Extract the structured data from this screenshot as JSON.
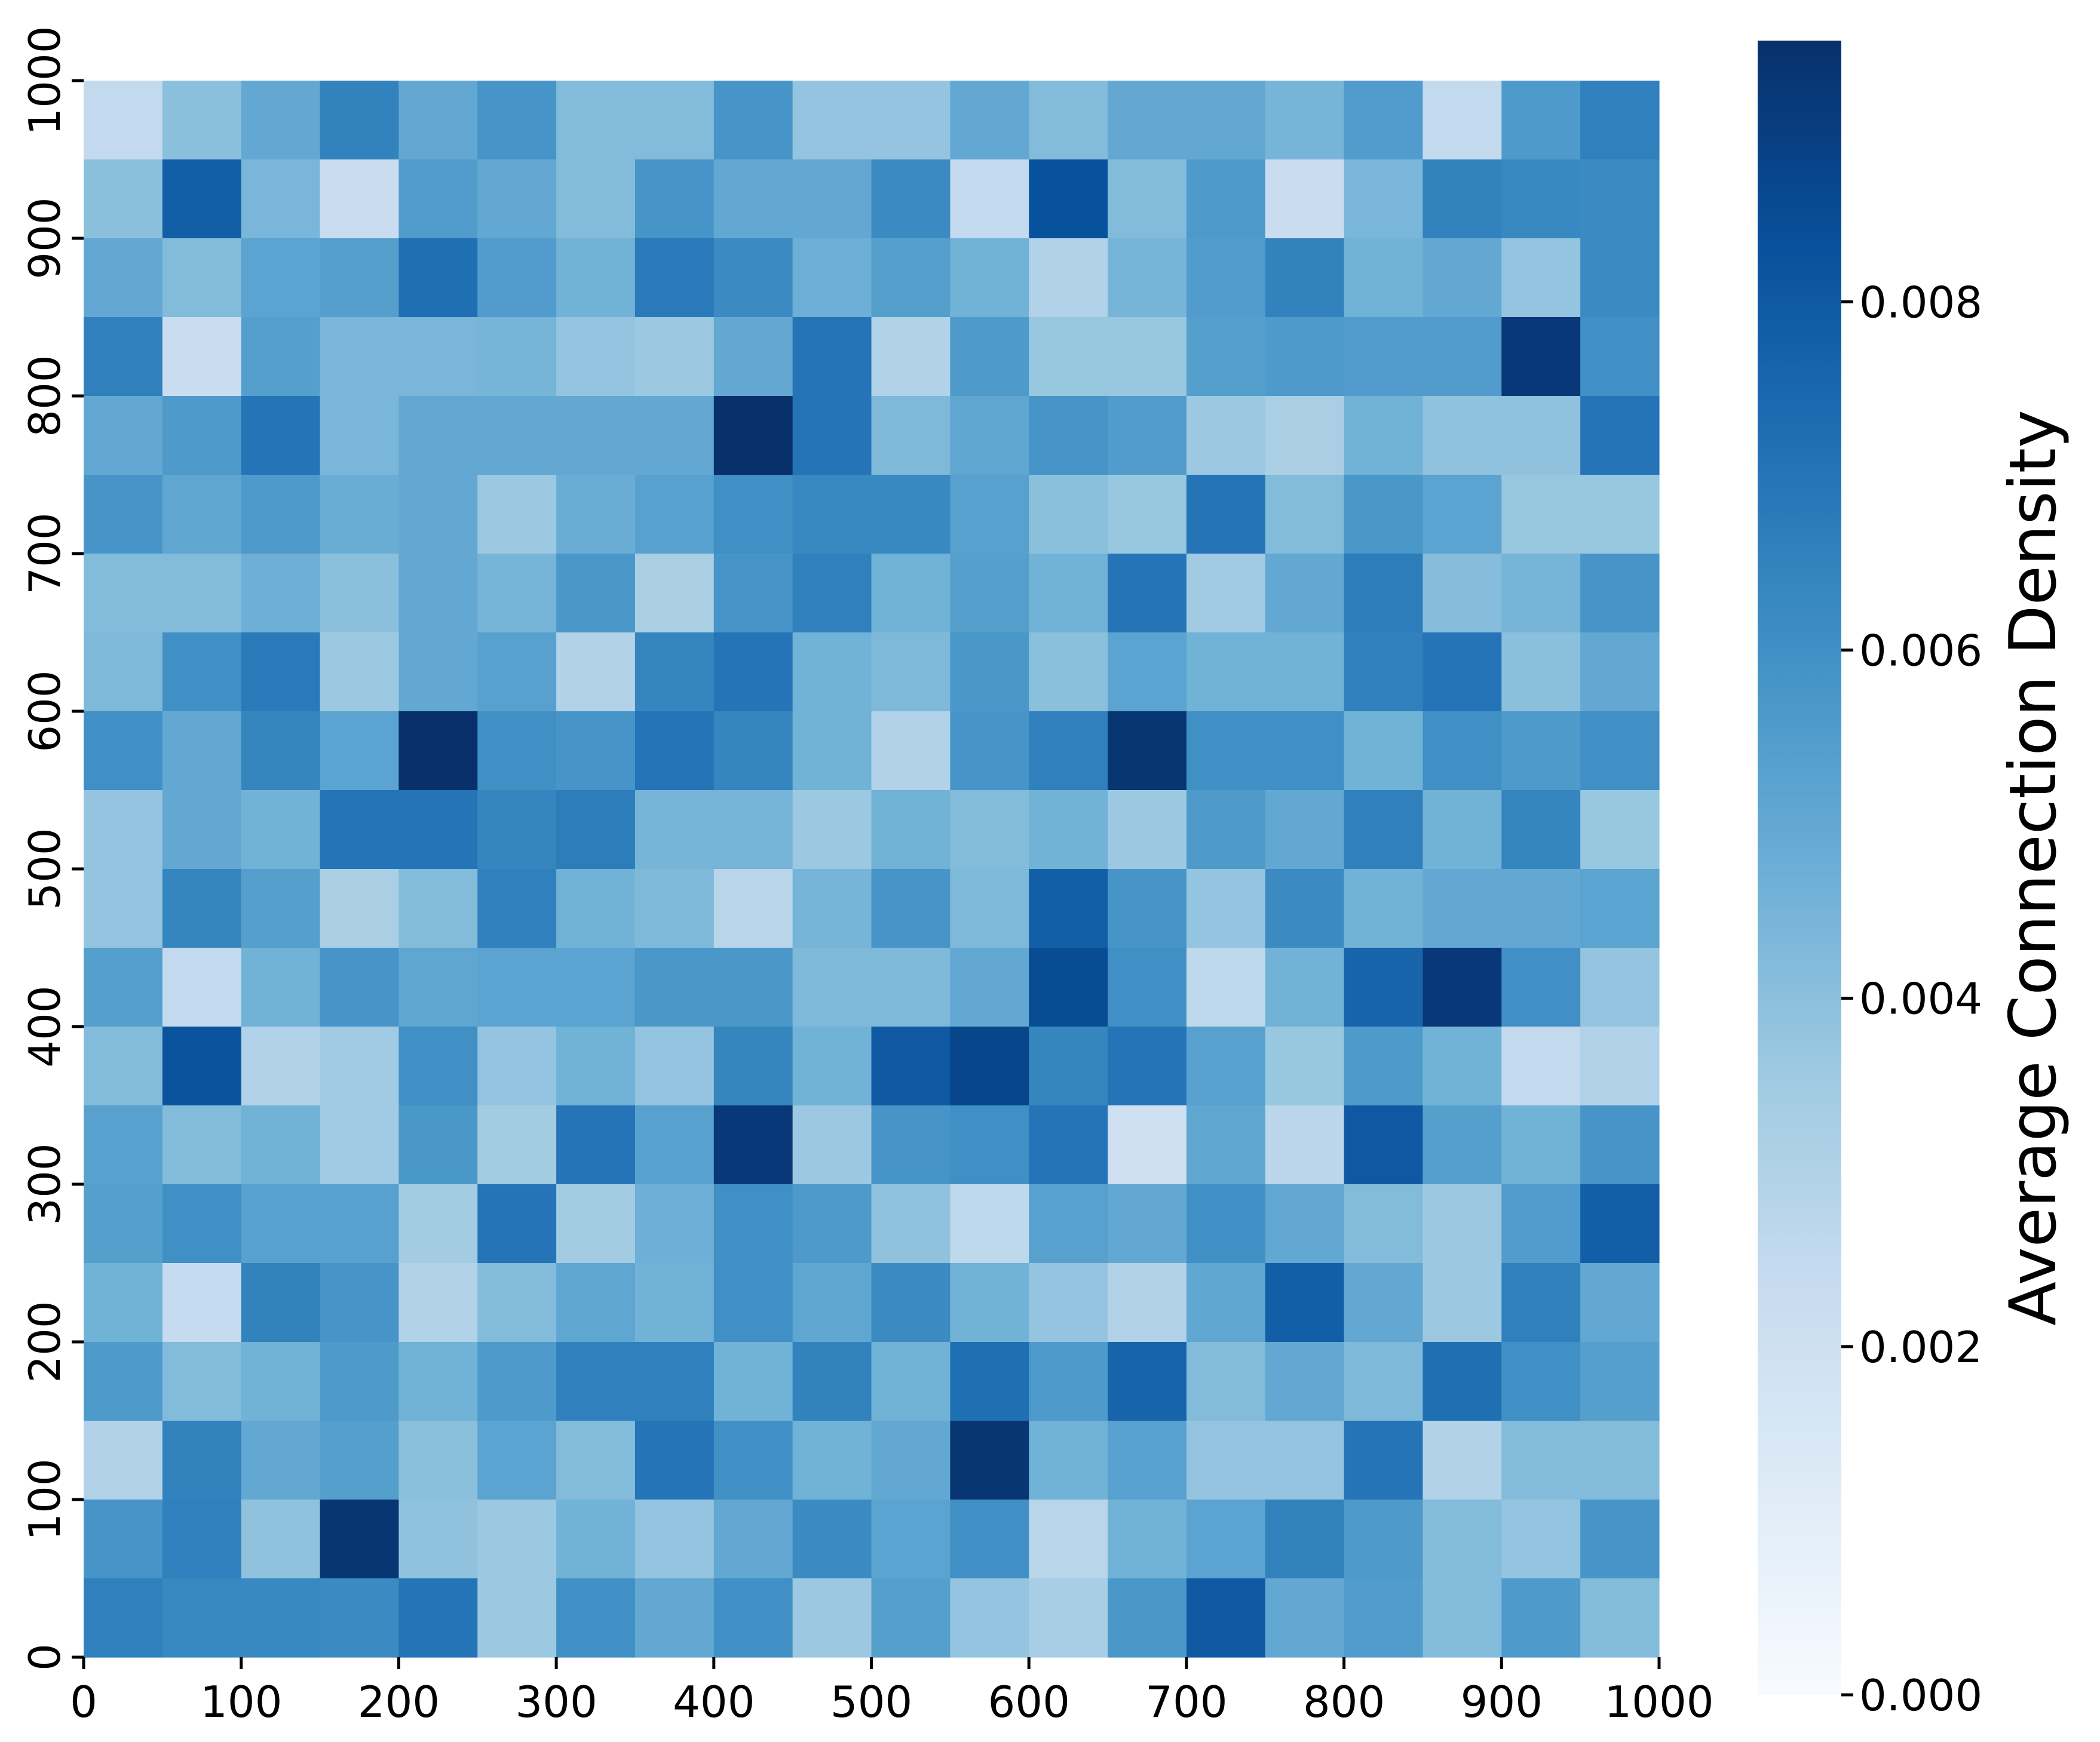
{
  "chart_data": {
    "type": "heatmap",
    "title": "",
    "xlabel": "",
    "ylabel": "",
    "x_range": [
      0,
      1000
    ],
    "y_range": [
      0,
      1000
    ],
    "bins": 20,
    "cell_size": 50,
    "x_ticks": [
      "0",
      "100",
      "200",
      "300",
      "400",
      "500",
      "600",
      "700",
      "800",
      "900",
      "1000"
    ],
    "y_ticks": [
      "0",
      "100",
      "200",
      "300",
      "400",
      "500",
      "600",
      "700",
      "800",
      "900",
      "1000"
    ],
    "colormap": "Blues",
    "colorbar": {
      "label": "Average Connection Density",
      "range": [
        0.0,
        0.0095
      ],
      "ticks": [
        "0.000",
        "0.002",
        "0.004",
        "0.006",
        "0.008"
      ],
      "tick_values": [
        0.0,
        0.002,
        0.004,
        0.006,
        0.008
      ]
    },
    "grid": false,
    "values_top_to_bottom": [
      [
        0.0025,
        0.004,
        0.005,
        0.0065,
        0.005,
        0.0058,
        0.0042,
        0.0042,
        0.0058,
        0.0038,
        0.0038,
        0.005,
        0.0042,
        0.005,
        0.005,
        0.0045,
        0.0055,
        0.0025,
        0.0056,
        0.0066
      ],
      [
        0.004,
        0.0078,
        0.0044,
        0.0022,
        0.0055,
        0.005,
        0.0042,
        0.0058,
        0.005,
        0.005,
        0.0062,
        0.0025,
        0.0083,
        0.0042,
        0.0056,
        0.0022,
        0.0044,
        0.0065,
        0.0063,
        0.0062
      ],
      [
        0.005,
        0.0042,
        0.0052,
        0.0054,
        0.0072,
        0.0055,
        0.0046,
        0.0068,
        0.0062,
        0.0047,
        0.0054,
        0.0046,
        0.003,
        0.0045,
        0.0055,
        0.0065,
        0.0046,
        0.005,
        0.0038,
        0.0062
      ],
      [
        0.0066,
        0.0022,
        0.0054,
        0.0044,
        0.0044,
        0.0045,
        0.0038,
        0.0036,
        0.005,
        0.007,
        0.003,
        0.0056,
        0.0037,
        0.0037,
        0.0054,
        0.0056,
        0.0055,
        0.0055,
        0.0092,
        0.006
      ],
      [
        0.005,
        0.0056,
        0.007,
        0.0044,
        0.005,
        0.005,
        0.005,
        0.005,
        0.0095,
        0.007,
        0.0043,
        0.0051,
        0.0058,
        0.0055,
        0.0036,
        0.0032,
        0.0046,
        0.0039,
        0.0039,
        0.007
      ],
      [
        0.0058,
        0.0051,
        0.0056,
        0.0048,
        0.005,
        0.0036,
        0.0048,
        0.0053,
        0.006,
        0.0063,
        0.0063,
        0.0053,
        0.004,
        0.0037,
        0.007,
        0.0042,
        0.0057,
        0.0052,
        0.0037,
        0.0037
      ],
      [
        0.0042,
        0.0042,
        0.0047,
        0.004,
        0.005,
        0.0045,
        0.0057,
        0.0032,
        0.0058,
        0.0066,
        0.0046,
        0.0054,
        0.0046,
        0.007,
        0.0035,
        0.005,
        0.0067,
        0.0041,
        0.0045,
        0.0058
      ],
      [
        0.0043,
        0.006,
        0.0068,
        0.0036,
        0.005,
        0.0053,
        0.003,
        0.0064,
        0.007,
        0.0046,
        0.0043,
        0.0057,
        0.004,
        0.0052,
        0.0046,
        0.0046,
        0.0066,
        0.007,
        0.004,
        0.005
      ],
      [
        0.006,
        0.005,
        0.0064,
        0.0052,
        0.0095,
        0.006,
        0.0058,
        0.007,
        0.0064,
        0.0046,
        0.003,
        0.0058,
        0.0066,
        0.0093,
        0.006,
        0.006,
        0.0046,
        0.006,
        0.0056,
        0.006
      ],
      [
        0.0038,
        0.005,
        0.0046,
        0.007,
        0.007,
        0.0064,
        0.0067,
        0.0045,
        0.0045,
        0.0036,
        0.0046,
        0.0042,
        0.0046,
        0.0036,
        0.0056,
        0.005,
        0.0066,
        0.0046,
        0.0064,
        0.0037
      ],
      [
        0.0038,
        0.0064,
        0.0054,
        0.0032,
        0.0042,
        0.0066,
        0.0046,
        0.0043,
        0.0028,
        0.0045,
        0.0058,
        0.0043,
        0.0078,
        0.0058,
        0.0038,
        0.0062,
        0.0046,
        0.005,
        0.005,
        0.0052
      ],
      [
        0.0054,
        0.0025,
        0.0046,
        0.0058,
        0.0051,
        0.0052,
        0.0052,
        0.0057,
        0.0057,
        0.0043,
        0.0043,
        0.005,
        0.0085,
        0.006,
        0.0026,
        0.0046,
        0.0076,
        0.0092,
        0.006,
        0.0038
      ],
      [
        0.0042,
        0.0082,
        0.003,
        0.0035,
        0.006,
        0.0038,
        0.0046,
        0.0038,
        0.0064,
        0.0046,
        0.008,
        0.0087,
        0.0064,
        0.007,
        0.0053,
        0.0037,
        0.0056,
        0.0046,
        0.0025,
        0.003
      ],
      [
        0.0053,
        0.0042,
        0.0046,
        0.0035,
        0.0057,
        0.0034,
        0.007,
        0.0053,
        0.0092,
        0.0036,
        0.0058,
        0.006,
        0.007,
        0.002,
        0.0051,
        0.0027,
        0.008,
        0.0054,
        0.0046,
        0.0058
      ],
      [
        0.0054,
        0.006,
        0.0053,
        0.0053,
        0.0034,
        0.007,
        0.0034,
        0.0047,
        0.006,
        0.0056,
        0.0039,
        0.0026,
        0.0053,
        0.005,
        0.006,
        0.005,
        0.0042,
        0.0036,
        0.0055,
        0.0078
      ],
      [
        0.0046,
        0.0024,
        0.0065,
        0.0058,
        0.003,
        0.0042,
        0.0051,
        0.0046,
        0.006,
        0.0051,
        0.0062,
        0.0046,
        0.0038,
        0.003,
        0.0051,
        0.0078,
        0.005,
        0.0036,
        0.0066,
        0.005
      ],
      [
        0.0056,
        0.0042,
        0.0046,
        0.0056,
        0.0046,
        0.0056,
        0.0066,
        0.0066,
        0.0046,
        0.0065,
        0.0046,
        0.0072,
        0.0056,
        0.0076,
        0.0042,
        0.005,
        0.0043,
        0.0072,
        0.006,
        0.0054
      ],
      [
        0.003,
        0.0065,
        0.005,
        0.0054,
        0.004,
        0.0052,
        0.0042,
        0.007,
        0.006,
        0.0046,
        0.005,
        0.0093,
        0.0046,
        0.0053,
        0.0038,
        0.0038,
        0.007,
        0.003,
        0.0042,
        0.0042
      ],
      [
        0.0058,
        0.0066,
        0.0039,
        0.0093,
        0.0039,
        0.0036,
        0.0046,
        0.0038,
        0.005,
        0.0062,
        0.0052,
        0.006,
        0.0028,
        0.0046,
        0.0052,
        0.0065,
        0.0056,
        0.0042,
        0.0038,
        0.0058
      ],
      [
        0.0066,
        0.0063,
        0.0063,
        0.0062,
        0.007,
        0.0036,
        0.006,
        0.005,
        0.006,
        0.0036,
        0.0054,
        0.0038,
        0.0033,
        0.0057,
        0.008,
        0.005,
        0.0055,
        0.0042,
        0.0056,
        0.0042
      ]
    ]
  }
}
